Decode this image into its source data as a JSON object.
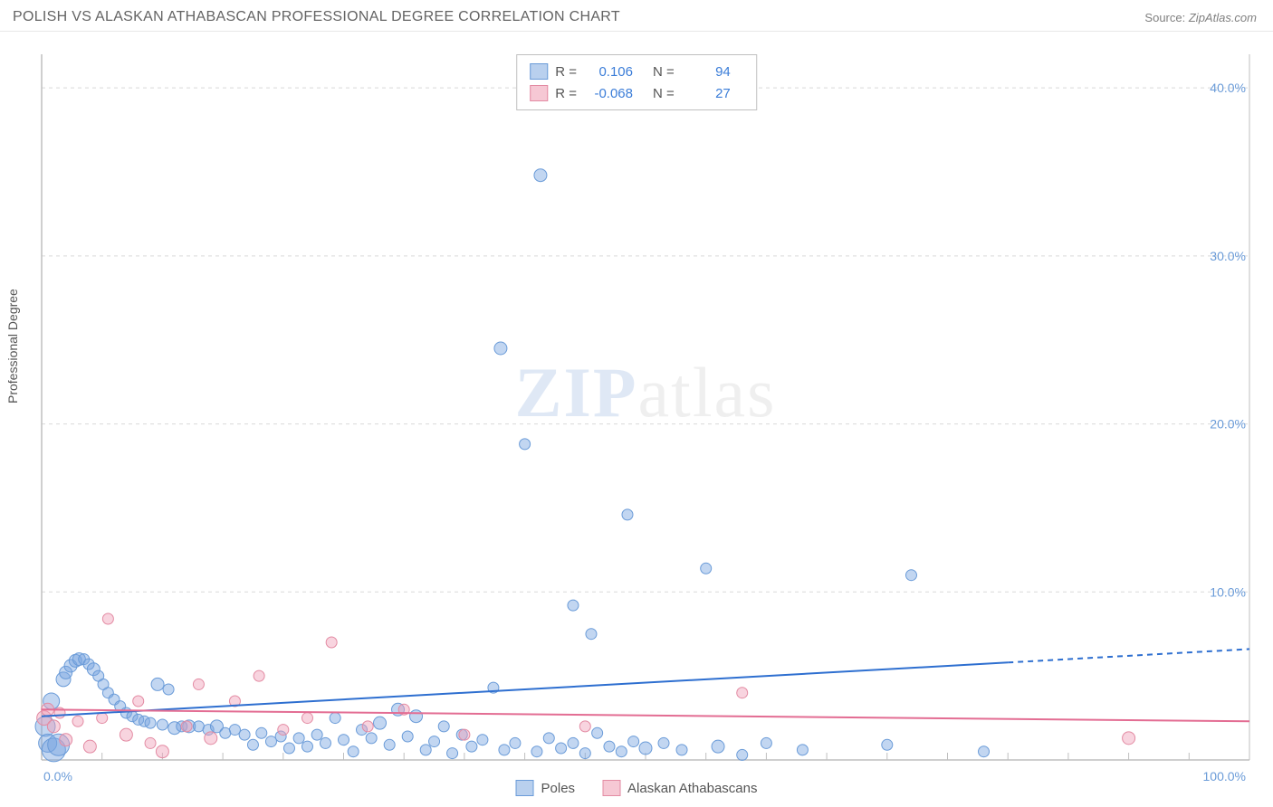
{
  "header": {
    "title": "POLISH VS ALASKAN ATHABASCAN PROFESSIONAL DEGREE CORRELATION CHART",
    "source_label": "Source:",
    "source_value": "ZipAtlas.com"
  },
  "watermark": {
    "part1": "ZIP",
    "part2": "atlas"
  },
  "yaxis": {
    "title": "Professional Degree"
  },
  "chart": {
    "type": "scatter",
    "xlim": [
      0,
      100
    ],
    "ylim": [
      0,
      42
    ],
    "x_tick_labels": {
      "min": "0.0%",
      "max": "100.0%"
    },
    "y_ticks": [
      10,
      20,
      30,
      40
    ],
    "y_tick_labels": [
      "10.0%",
      "20.0%",
      "30.0%",
      "40.0%"
    ],
    "grid_color": "#d9d9d9",
    "axis_color": "#bfbfbf",
    "background_color": "#ffffff",
    "x_minor_ticks": [
      5,
      10,
      15,
      20,
      25,
      30,
      35,
      40,
      45,
      50,
      55,
      60,
      65,
      70,
      75,
      80,
      85,
      90,
      95
    ],
    "series": [
      {
        "name": "Poles",
        "color_fill": "rgba(120,165,225,0.45)",
        "color_stroke": "#6a9bd8",
        "trend": {
          "y_at_x0": 2.6,
          "y_at_x100": 6.6,
          "solid_until_x": 80,
          "color": "#2e6fd0",
          "width": 2
        },
        "points": [
          {
            "x": 0.3,
            "y": 2.0,
            "r": 11
          },
          {
            "x": 0.5,
            "y": 1.0,
            "r": 10
          },
          {
            "x": 0.8,
            "y": 3.5,
            "r": 9
          },
          {
            "x": 1.0,
            "y": 0.6,
            "r": 13
          },
          {
            "x": 1.4,
            "y": 0.9,
            "r": 12
          },
          {
            "x": 1.8,
            "y": 4.8,
            "r": 8
          },
          {
            "x": 2.0,
            "y": 5.2,
            "r": 7
          },
          {
            "x": 2.4,
            "y": 5.6,
            "r": 7
          },
          {
            "x": 2.8,
            "y": 5.9,
            "r": 7
          },
          {
            "x": 3.1,
            "y": 6.0,
            "r": 7
          },
          {
            "x": 3.5,
            "y": 6.0,
            "r": 6
          },
          {
            "x": 3.9,
            "y": 5.7,
            "r": 6
          },
          {
            "x": 4.3,
            "y": 5.4,
            "r": 7
          },
          {
            "x": 4.7,
            "y": 5.0,
            "r": 6
          },
          {
            "x": 5.1,
            "y": 4.5,
            "r": 6
          },
          {
            "x": 5.5,
            "y": 4.0,
            "r": 6
          },
          {
            "x": 6.0,
            "y": 3.6,
            "r": 6
          },
          {
            "x": 6.5,
            "y": 3.2,
            "r": 6
          },
          {
            "x": 7.0,
            "y": 2.8,
            "r": 6
          },
          {
            "x": 7.5,
            "y": 2.6,
            "r": 6
          },
          {
            "x": 8.0,
            "y": 2.4,
            "r": 6
          },
          {
            "x": 8.5,
            "y": 2.3,
            "r": 6
          },
          {
            "x": 9.0,
            "y": 2.2,
            "r": 6
          },
          {
            "x": 9.6,
            "y": 4.5,
            "r": 7
          },
          {
            "x": 10,
            "y": 2.1,
            "r": 6
          },
          {
            "x": 10.5,
            "y": 4.2,
            "r": 6
          },
          {
            "x": 11,
            "y": 1.9,
            "r": 7
          },
          {
            "x": 11.6,
            "y": 2.0,
            "r": 6
          },
          {
            "x": 12.2,
            "y": 2.0,
            "r": 7
          },
          {
            "x": 13,
            "y": 2.0,
            "r": 6
          },
          {
            "x": 13.8,
            "y": 1.8,
            "r": 6
          },
          {
            "x": 14.5,
            "y": 2.0,
            "r": 7
          },
          {
            "x": 15.2,
            "y": 1.6,
            "r": 6
          },
          {
            "x": 16,
            "y": 1.8,
            "r": 6
          },
          {
            "x": 16.8,
            "y": 1.5,
            "r": 6
          },
          {
            "x": 17.5,
            "y": 0.9,
            "r": 6
          },
          {
            "x": 18.2,
            "y": 1.6,
            "r": 6
          },
          {
            "x": 19,
            "y": 1.1,
            "r": 6
          },
          {
            "x": 19.8,
            "y": 1.4,
            "r": 6
          },
          {
            "x": 20.5,
            "y": 0.7,
            "r": 6
          },
          {
            "x": 21.3,
            "y": 1.3,
            "r": 6
          },
          {
            "x": 22,
            "y": 0.8,
            "r": 6
          },
          {
            "x": 22.8,
            "y": 1.5,
            "r": 6
          },
          {
            "x": 23.5,
            "y": 1.0,
            "r": 6
          },
          {
            "x": 24.3,
            "y": 2.5,
            "r": 6
          },
          {
            "x": 25,
            "y": 1.2,
            "r": 6
          },
          {
            "x": 25.8,
            "y": 0.5,
            "r": 6
          },
          {
            "x": 26.5,
            "y": 1.8,
            "r": 6
          },
          {
            "x": 27.3,
            "y": 1.3,
            "r": 6
          },
          {
            "x": 28,
            "y": 2.2,
            "r": 7
          },
          {
            "x": 28.8,
            "y": 0.9,
            "r": 6
          },
          {
            "x": 29.5,
            "y": 3.0,
            "r": 7
          },
          {
            "x": 30.3,
            "y": 1.4,
            "r": 6
          },
          {
            "x": 31,
            "y": 2.6,
            "r": 7
          },
          {
            "x": 31.8,
            "y": 0.6,
            "r": 6
          },
          {
            "x": 32.5,
            "y": 1.1,
            "r": 6
          },
          {
            "x": 33.3,
            "y": 2.0,
            "r": 6
          },
          {
            "x": 34,
            "y": 0.4,
            "r": 6
          },
          {
            "x": 34.8,
            "y": 1.5,
            "r": 6
          },
          {
            "x": 35.6,
            "y": 0.8,
            "r": 6
          },
          {
            "x": 36.5,
            "y": 1.2,
            "r": 6
          },
          {
            "x": 37.4,
            "y": 4.3,
            "r": 6
          },
          {
            "x": 38,
            "y": 24.5,
            "r": 7
          },
          {
            "x": 38.3,
            "y": 0.6,
            "r": 6
          },
          {
            "x": 39.2,
            "y": 1.0,
            "r": 6
          },
          {
            "x": 40,
            "y": 18.8,
            "r": 6
          },
          {
            "x": 41,
            "y": 0.5,
            "r": 6
          },
          {
            "x": 41.3,
            "y": 34.8,
            "r": 7
          },
          {
            "x": 42,
            "y": 1.3,
            "r": 6
          },
          {
            "x": 43,
            "y": 0.7,
            "r": 6
          },
          {
            "x": 44,
            "y": 9.2,
            "r": 6
          },
          {
            "x": 44,
            "y": 1.0,
            "r": 6
          },
          {
            "x": 45,
            "y": 0.4,
            "r": 6
          },
          {
            "x": 45.5,
            "y": 7.5,
            "r": 6
          },
          {
            "x": 46,
            "y": 1.6,
            "r": 6
          },
          {
            "x": 47,
            "y": 0.8,
            "r": 6
          },
          {
            "x": 48,
            "y": 0.5,
            "r": 6
          },
          {
            "x": 48.5,
            "y": 14.6,
            "r": 6
          },
          {
            "x": 49,
            "y": 1.1,
            "r": 6
          },
          {
            "x": 50,
            "y": 0.7,
            "r": 7
          },
          {
            "x": 51.5,
            "y": 1.0,
            "r": 6
          },
          {
            "x": 53,
            "y": 0.6,
            "r": 6
          },
          {
            "x": 55,
            "y": 11.4,
            "r": 6
          },
          {
            "x": 56,
            "y": 0.8,
            "r": 7
          },
          {
            "x": 58,
            "y": 0.3,
            "r": 6
          },
          {
            "x": 60,
            "y": 1.0,
            "r": 6
          },
          {
            "x": 63,
            "y": 0.6,
            "r": 6
          },
          {
            "x": 70,
            "y": 0.9,
            "r": 6
          },
          {
            "x": 72,
            "y": 11.0,
            "r": 6
          },
          {
            "x": 78,
            "y": 0.5,
            "r": 6
          }
        ]
      },
      {
        "name": "Alaskan Athabascans",
        "color_fill": "rgba(240,160,185,0.45)",
        "color_stroke": "#e38ba3",
        "trend": {
          "y_at_x0": 3.0,
          "y_at_x100": 2.3,
          "solid_until_x": 100,
          "color": "#e36d93",
          "width": 2
        },
        "points": [
          {
            "x": 0.2,
            "y": 2.5,
            "r": 8
          },
          {
            "x": 0.5,
            "y": 3.0,
            "r": 7
          },
          {
            "x": 1,
            "y": 2.0,
            "r": 7
          },
          {
            "x": 1.5,
            "y": 2.8,
            "r": 6
          },
          {
            "x": 2,
            "y": 1.2,
            "r": 7
          },
          {
            "x": 3,
            "y": 2.3,
            "r": 6
          },
          {
            "x": 4,
            "y": 0.8,
            "r": 7
          },
          {
            "x": 5,
            "y": 2.5,
            "r": 6
          },
          {
            "x": 5.5,
            "y": 8.4,
            "r": 6
          },
          {
            "x": 7,
            "y": 1.5,
            "r": 7
          },
          {
            "x": 8,
            "y": 3.5,
            "r": 6
          },
          {
            "x": 9,
            "y": 1.0,
            "r": 6
          },
          {
            "x": 10,
            "y": 0.5,
            "r": 7
          },
          {
            "x": 12,
            "y": 2.0,
            "r": 6
          },
          {
            "x": 13,
            "y": 4.5,
            "r": 6
          },
          {
            "x": 14,
            "y": 1.3,
            "r": 7
          },
          {
            "x": 16,
            "y": 3.5,
            "r": 6
          },
          {
            "x": 18,
            "y": 5.0,
            "r": 6
          },
          {
            "x": 20,
            "y": 1.8,
            "r": 6
          },
          {
            "x": 22,
            "y": 2.5,
            "r": 6
          },
          {
            "x": 24,
            "y": 7.0,
            "r": 6
          },
          {
            "x": 27,
            "y": 2.0,
            "r": 6
          },
          {
            "x": 30,
            "y": 3.0,
            "r": 6
          },
          {
            "x": 35,
            "y": 1.5,
            "r": 6
          },
          {
            "x": 45,
            "y": 2.0,
            "r": 6
          },
          {
            "x": 58,
            "y": 4.0,
            "r": 6
          },
          {
            "x": 90,
            "y": 1.3,
            "r": 7
          }
        ]
      }
    ]
  },
  "legend_top": {
    "rows": [
      {
        "swatch": "blue",
        "r_label": "R =",
        "r_value": "0.106",
        "n_label": "N =",
        "n_value": "94"
      },
      {
        "swatch": "pink",
        "r_label": "R =",
        "r_value": "-0.068",
        "n_label": "N =",
        "n_value": "27"
      }
    ]
  },
  "legend_bottom": {
    "items": [
      {
        "swatch": "blue",
        "label": "Poles"
      },
      {
        "swatch": "pink",
        "label": "Alaskan Athabascans"
      }
    ]
  }
}
